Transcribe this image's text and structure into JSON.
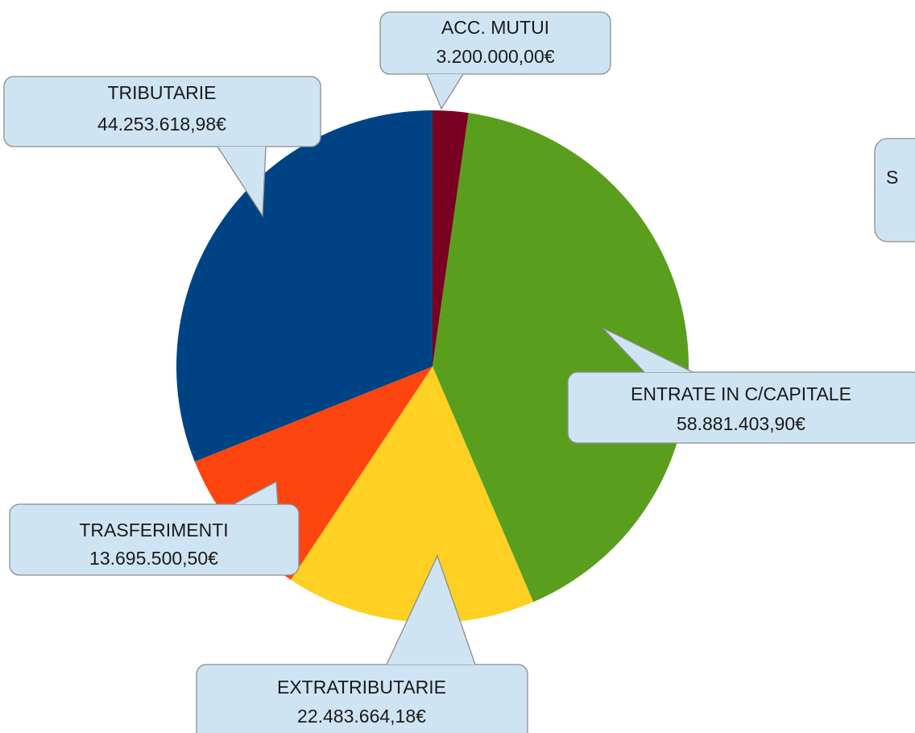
{
  "chart_data": {
    "type": "pie",
    "categories": [
      "ACC. MUTUI",
      "ENTRATE IN C/CAPITALE",
      "EXTRATRIBUTARIE",
      "TRASFERIMENTI",
      "TRIBUTARIE"
    ],
    "values": [
      3200000.0,
      58881403.9,
      22483664.18,
      13695500.5,
      44253618.98
    ],
    "value_labels": [
      "3.200.000,00€",
      "58.881.403,90€",
      "22.483.664,18€",
      "13.695.500,50€",
      "44.253.618,98€"
    ],
    "colors": [
      "#7a0022",
      "#5a9e1e",
      "#fdd023",
      "#fd4510",
      "#004385"
    ],
    "annotations": [
      "S"
    ]
  }
}
